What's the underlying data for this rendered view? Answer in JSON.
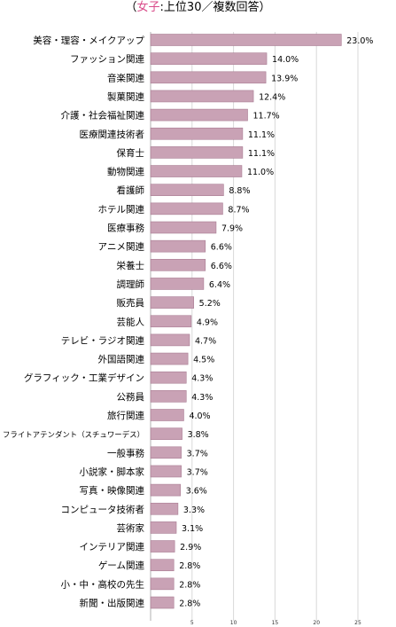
{
  "title": {
    "open": "（",
    "highlight": "女子",
    "rest": ":上位30／複数回答）"
  },
  "colors": {
    "bar": "#c9a2b5",
    "bar_edge": "#a97c93",
    "title_highlight": "#d94c8a",
    "grid": "#d8d8d8"
  },
  "chart_data": {
    "type": "bar",
    "orientation": "horizontal",
    "title": "（女子:上位30／複数回答）",
    "xlabel": "",
    "ylabel": "",
    "xlim": [
      0,
      25
    ],
    "x_ticks": [
      5,
      10,
      15,
      20,
      25
    ],
    "grid": true,
    "categories": [
      "美容・理容・メイクアップ",
      "ファッション関連",
      "音楽関連",
      "製菓関連",
      "介護・社会福祉関連",
      "医療関連技術者",
      "保育士",
      "動物関連",
      "看護師",
      "ホテル関連",
      "医療事務",
      "アニメ関連",
      "栄養士",
      "調理師",
      "販売員",
      "芸能人",
      "テレビ・ラジオ関連",
      "外国語関連",
      "グラフィック・工業デザイン",
      "公務員",
      "旅行関連",
      "フライトアテンダント（スチュワーデス）",
      "一般事務",
      "小説家・脚本家",
      "写真・映像関連",
      "コンピュータ技術者",
      "芸術家",
      "インテリア関連",
      "ゲーム関連",
      "小・中・高校の先生",
      "新聞・出版関連"
    ],
    "values": [
      23.0,
      14.0,
      13.9,
      12.4,
      11.7,
      11.1,
      11.1,
      11.0,
      8.8,
      8.7,
      7.9,
      6.6,
      6.6,
      6.4,
      5.2,
      4.9,
      4.7,
      4.5,
      4.3,
      4.3,
      4.0,
      3.8,
      3.7,
      3.7,
      3.6,
      3.3,
      3.1,
      2.9,
      2.8,
      2.8,
      2.8
    ],
    "value_labels": [
      "23.0%",
      "14.0%",
      "13.9%",
      "12.4%",
      "11.7%",
      "11.1%",
      "11.1%",
      "11.0%",
      "8.8%",
      "8.7%",
      "7.9%",
      "6.6%",
      "6.6%",
      "6.4%",
      "5.2%",
      "4.9%",
      "4.7%",
      "4.5%",
      "4.3%",
      "4.3%",
      "4.0%",
      "3.8%",
      "3.7%",
      "3.7%",
      "3.6%",
      "3.3%",
      "3.1%",
      "2.9%",
      "2.8%",
      "2.8%",
      "2.8%"
    ]
  }
}
